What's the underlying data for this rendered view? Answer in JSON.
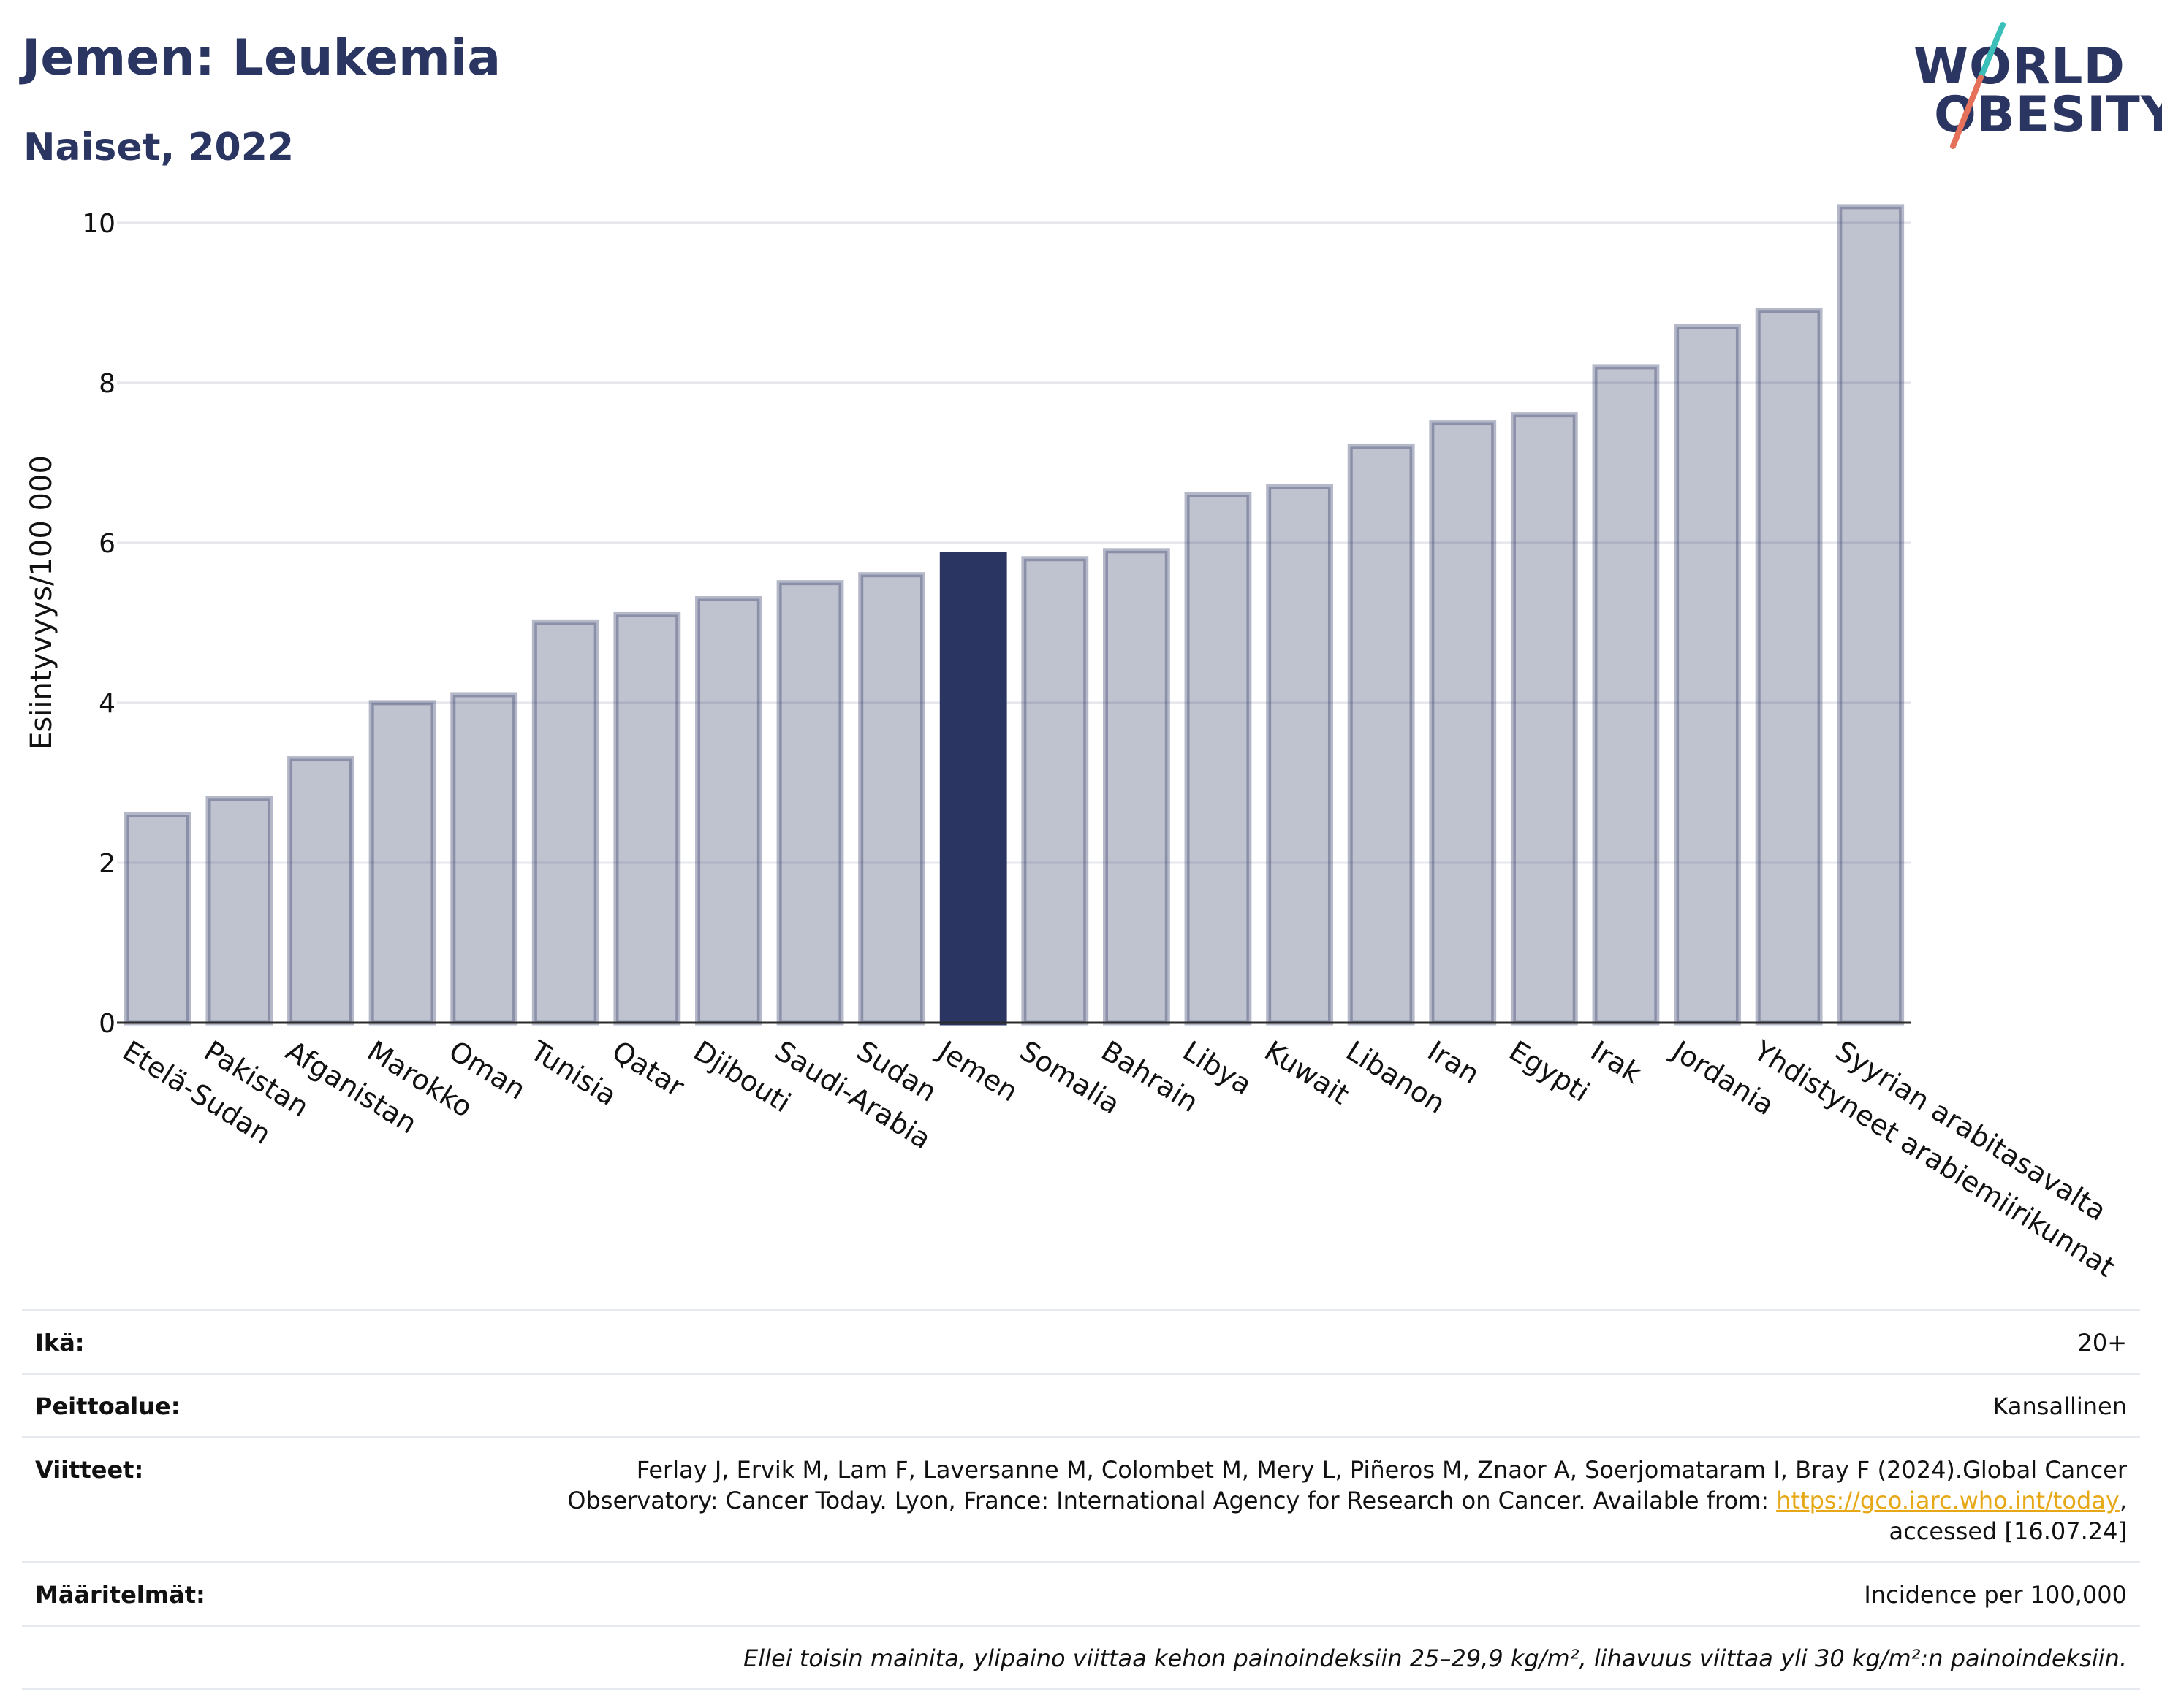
{
  "header": {
    "title": "Jemen: Leukemia",
    "subtitle": "Naiset, 2022"
  },
  "logo": {
    "line1": "WORLD",
    "line2": "OBESITY",
    "colors": {
      "text": "#2b3561",
      "slash_top": "#3bbfb8",
      "slash_bottom": "#e5715a"
    }
  },
  "chart_data": {
    "type": "bar",
    "title": "",
    "xlabel": "",
    "ylabel": "Esiintyvyys/100 000",
    "ylim": [
      0,
      10.5
    ],
    "yticks": [
      0,
      2,
      4,
      6,
      8,
      10
    ],
    "grid": true,
    "highlight": "Jemen",
    "colors": {
      "bar": "#2b3561",
      "bar_fill_opacity": 0.3,
      "highlight": "#2b3561",
      "grid": "#e6e8ee"
    },
    "categories": [
      "Etelä-Sudan",
      "Pakistan",
      "Afganistan",
      "Marokko",
      "Oman",
      "Tunisia",
      "Qatar",
      "Djibouti",
      "Saudi-Arabia",
      "Sudan",
      "Jemen",
      "Somalia",
      "Bahrain",
      "Libya",
      "Kuwait",
      "Libanon",
      "Iran",
      "Egypti",
      "Irak",
      "Jordania",
      "Yhdistyneet arabiemiirikunnat",
      "Syyrian arabitasavalta"
    ],
    "values": [
      2.6,
      2.8,
      3.3,
      4.0,
      4.1,
      5.0,
      5.1,
      5.3,
      5.5,
      5.6,
      5.85,
      5.8,
      5.9,
      6.6,
      6.7,
      7.2,
      7.5,
      7.6,
      8.2,
      8.7,
      8.9,
      10.2
    ]
  },
  "meta": {
    "age": {
      "label": "Ikä:",
      "value": "20+"
    },
    "coverage": {
      "label": "Peittoalue:",
      "value": "Kansallinen"
    },
    "references": {
      "label": "Viitteet:",
      "line1": "Ferlay J, Ervik M, Lam F, Laversanne M, Colombet M, Mery L, Piñeros M, Znaor A, Soerjomataram I, Bray F (2024).Global Cancer",
      "line2_pre": "Observatory: Cancer Today. Lyon, France: International Agency for Research on Cancer. Available from: ",
      "link": "https://gco.iarc.who.int/today",
      "line2_post": ",",
      "line3": "accessed [16.07.24]"
    },
    "definitions": {
      "label": "Määritelmät:",
      "value": "Incidence per 100,000"
    },
    "note": "Ellei toisin mainita, ylipaino viittaa kehon painoindeksiin 25–29,9 kg/m², lihavuus viittaa yli 30 kg/m²:n painoindeksiin."
  }
}
